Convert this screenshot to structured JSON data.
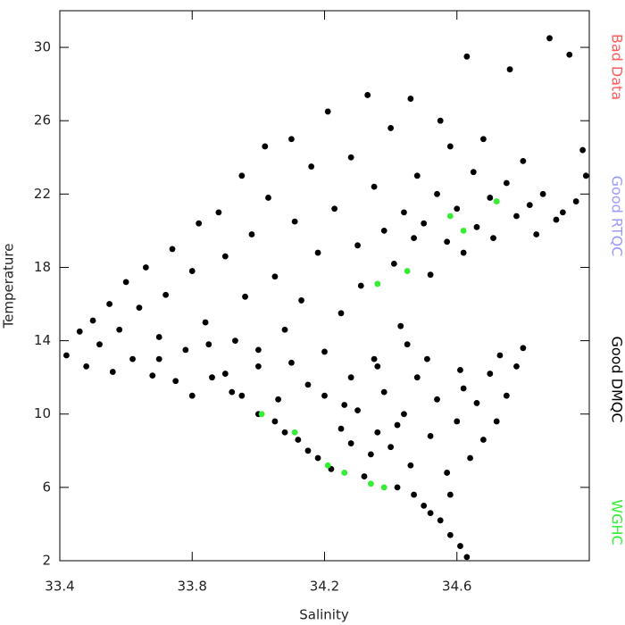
{
  "chart_data": {
    "type": "scatter",
    "x_label": "Salinity",
    "y_label": "Temperature",
    "xlim": [
      33.4,
      35.0
    ],
    "ylim": [
      2,
      32
    ],
    "xticks": [
      33.4,
      33.8,
      34.2,
      34.6
    ],
    "yticks": [
      2,
      6,
      10,
      14,
      18,
      22,
      26,
      30
    ],
    "series": [
      {
        "name": "Bad Data",
        "color": "#ff5a5a",
        "x": [],
        "y": []
      },
      {
        "name": "Good RTQC",
        "color": "#9a9aff",
        "x": [],
        "y": []
      },
      {
        "name": "Good DMQC",
        "color": "#000000",
        "x": [
          33.42,
          33.46,
          33.48,
          33.5,
          33.52,
          33.55,
          33.56,
          33.58,
          33.6,
          33.62,
          33.64,
          33.66,
          33.68,
          33.7,
          33.72,
          33.74,
          33.75,
          33.78,
          33.8,
          33.82,
          33.84,
          33.86,
          33.88,
          33.9,
          33.92,
          33.93,
          33.95,
          33.96,
          33.98,
          34.0,
          34.02,
          34.03,
          34.05,
          34.06,
          34.08,
          34.1,
          34.11,
          34.13,
          34.15,
          34.16,
          34.18,
          34.2,
          34.21,
          34.23,
          34.25,
          34.26,
          34.28,
          34.3,
          34.31,
          34.33,
          34.35,
          34.36,
          34.38,
          34.4,
          34.41,
          34.43,
          34.44,
          34.46,
          34.47,
          34.48,
          34.5,
          34.51,
          34.52,
          34.54,
          34.55,
          34.57,
          34.58,
          34.6,
          34.61,
          34.62,
          34.63,
          34.65,
          34.66,
          34.68,
          34.7,
          34.71,
          34.73,
          34.75,
          34.76,
          34.78,
          34.8,
          34.82,
          34.84,
          34.86,
          34.88,
          34.9,
          34.92,
          34.94,
          34.96,
          34.98,
          34.99,
          33.9,
          33.95,
          34.0,
          34.05,
          34.08,
          34.12,
          34.15,
          34.18,
          34.22,
          34.25,
          34.28,
          34.3,
          34.32,
          34.34,
          34.36,
          34.38,
          34.4,
          34.42,
          34.44,
          34.46,
          34.48,
          34.5,
          34.52,
          34.54,
          34.55,
          34.57,
          34.58,
          34.6,
          34.61,
          34.62,
          34.63,
          34.64,
          34.66,
          34.68,
          34.7,
          34.72,
          34.75,
          34.78,
          34.8,
          34.52,
          34.47,
          34.45,
          34.35,
          34.28,
          34.2,
          34.1,
          34.0,
          33.85,
          33.8,
          33.7,
          34.42,
          34.58
        ],
        "y": [
          13.2,
          14.5,
          12.6,
          15.1,
          13.8,
          16.0,
          12.3,
          14.6,
          17.2,
          13.0,
          15.8,
          18.0,
          12.1,
          14.2,
          16.5,
          19.0,
          11.8,
          13.5,
          17.8,
          20.4,
          15.0,
          12.0,
          21.0,
          18.6,
          11.2,
          14.0,
          23.0,
          16.4,
          19.8,
          12.6,
          24.6,
          21.8,
          17.5,
          10.8,
          14.6,
          25.0,
          20.5,
          16.2,
          11.6,
          23.5,
          18.8,
          13.4,
          26.5,
          21.2,
          15.5,
          10.5,
          24.0,
          19.2,
          17.0,
          27.4,
          22.4,
          12.6,
          20.0,
          25.6,
          18.2,
          14.8,
          21.0,
          27.2,
          19.6,
          23.0,
          20.4,
          13.0,
          17.6,
          22.0,
          26.0,
          19.4,
          24.6,
          21.2,
          12.4,
          18.8,
          29.5,
          23.2,
          20.2,
          25.0,
          21.8,
          19.6,
          13.2,
          22.6,
          28.8,
          20.8,
          23.8,
          21.4,
          19.8,
          22.0,
          30.5,
          20.6,
          21.0,
          29.6,
          21.6,
          24.4,
          23.0,
          12.2,
          11.0,
          10.0,
          9.6,
          9.0,
          8.6,
          8.0,
          7.6,
          7.0,
          9.2,
          8.4,
          10.2,
          6.6,
          7.8,
          9.0,
          11.2,
          8.2,
          6.0,
          10.0,
          7.2,
          12.0,
          5.0,
          8.8,
          10.8,
          4.2,
          6.8,
          3.4,
          9.6,
          2.8,
          11.4,
          2.2,
          7.6,
          10.6,
          8.6,
          12.2,
          9.6,
          11.0,
          12.6,
          13.6,
          4.6,
          5.6,
          13.8,
          13.0,
          12.0,
          11.0,
          12.8,
          13.5,
          13.8,
          11.0,
          13.0,
          9.4,
          5.6
        ]
      },
      {
        "name": "WGHC",
        "color": "#33ee33",
        "x": [
          34.72,
          34.62,
          34.45,
          34.36,
          34.01,
          34.11,
          34.26,
          34.21,
          34.38,
          34.34,
          34.58
        ],
        "y": [
          21.6,
          20.0,
          17.8,
          17.1,
          10.0,
          9.0,
          6.8,
          7.2,
          6.0,
          6.2,
          20.8
        ]
      }
    ]
  }
}
